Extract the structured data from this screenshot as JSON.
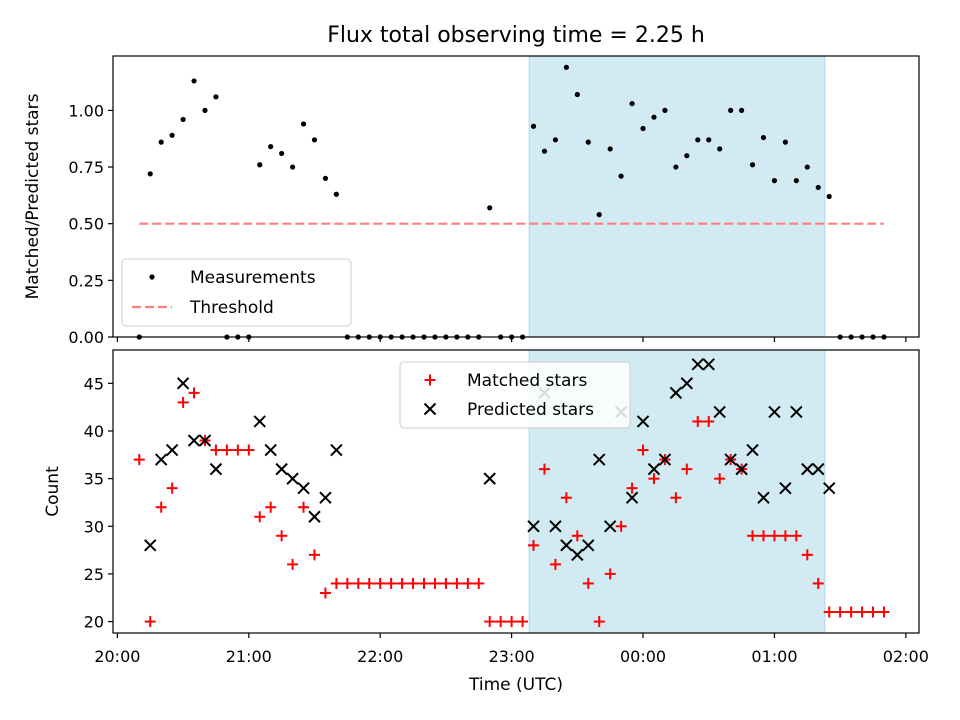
{
  "title": "Flux total observing time = 2.25 h",
  "colors": {
    "measurement": "#000000",
    "threshold": "#ff7f7f",
    "matched": "#ff0000",
    "predicted": "#000000",
    "window": "#add8e6"
  },
  "chart_data": [
    {
      "type": "scatter",
      "panel": "top",
      "title": "Flux total observing time = 2.25 h",
      "xlabel": "",
      "ylabel": "Matched/Predicted stars",
      "xlim": [
        "19:58",
        "02:06"
      ],
      "ylim": [
        0,
        1.24
      ],
      "yticks": [
        "0.00",
        "0.25",
        "0.50",
        "0.75",
        "1.00"
      ],
      "observing_window": [
        "23:08",
        "01:23"
      ],
      "legend_position": "lower-left",
      "series": [
        {
          "name": "Measurements",
          "marker": "dot",
          "points": [
            [
              "20:10",
              0.0
            ],
            [
              "20:15",
              0.72
            ],
            [
              "20:20",
              0.86
            ],
            [
              "20:25",
              0.89
            ],
            [
              "20:30",
              0.96
            ],
            [
              "20:35",
              1.13
            ],
            [
              "20:40",
              1.0
            ],
            [
              "20:45",
              1.06
            ],
            [
              "20:50",
              0.0
            ],
            [
              "20:55",
              0.0
            ],
            [
              "21:00",
              0.0
            ],
            [
              "21:05",
              0.76
            ],
            [
              "21:10",
              0.84
            ],
            [
              "21:15",
              0.81
            ],
            [
              "21:20",
              0.75
            ],
            [
              "21:25",
              0.94
            ],
            [
              "21:30",
              0.87
            ],
            [
              "21:35",
              0.7
            ],
            [
              "21:40",
              0.63
            ],
            [
              "21:45",
              0.0
            ],
            [
              "21:50",
              0.0
            ],
            [
              "21:55",
              0.0
            ],
            [
              "22:00",
              0.0
            ],
            [
              "22:05",
              0.0
            ],
            [
              "22:10",
              0.0
            ],
            [
              "22:15",
              0.0
            ],
            [
              "22:20",
              0.0
            ],
            [
              "22:25",
              0.0
            ],
            [
              "22:30",
              0.0
            ],
            [
              "22:35",
              0.0
            ],
            [
              "22:40",
              0.0
            ],
            [
              "22:45",
              0.0
            ],
            [
              "22:50",
              0.57
            ],
            [
              "22:55",
              0.0
            ],
            [
              "23:00",
              0.0
            ],
            [
              "23:05",
              0.0
            ],
            [
              "23:10",
              0.93
            ],
            [
              "23:15",
              0.82
            ],
            [
              "23:20",
              0.87
            ],
            [
              "23:25",
              1.19
            ],
            [
              "23:30",
              1.07
            ],
            [
              "23:35",
              0.86
            ],
            [
              "23:40",
              0.54
            ],
            [
              "23:45",
              0.83
            ],
            [
              "23:50",
              0.71
            ],
            [
              "23:55",
              1.03
            ],
            [
              "00:00",
              0.92
            ],
            [
              "00:05",
              0.97
            ],
            [
              "00:10",
              1.0
            ],
            [
              "00:15",
              0.75
            ],
            [
              "00:20",
              0.8
            ],
            [
              "00:25",
              0.87
            ],
            [
              "00:30",
              0.87
            ],
            [
              "00:35",
              0.83
            ],
            [
              "00:40",
              1.0
            ],
            [
              "00:45",
              1.0
            ],
            [
              "00:50",
              0.76
            ],
            [
              "00:55",
              0.88
            ],
            [
              "01:00",
              0.69
            ],
            [
              "01:05",
              0.86
            ],
            [
              "01:10",
              0.69
            ],
            [
              "01:15",
              0.75
            ],
            [
              "01:20",
              0.66
            ],
            [
              "01:25",
              0.62
            ],
            [
              "01:30",
              0.0
            ],
            [
              "01:35",
              0.0
            ],
            [
              "01:40",
              0.0
            ],
            [
              "01:45",
              0.0
            ],
            [
              "01:50",
              0.0
            ]
          ]
        },
        {
          "name": "Threshold",
          "marker": "dashed-line",
          "points": [
            [
              "20:10",
              0.5
            ],
            [
              "01:50",
              0.5
            ]
          ]
        }
      ]
    },
    {
      "type": "scatter",
      "panel": "bottom",
      "title": "",
      "xlabel": "Time (UTC)",
      "ylabel": "Count",
      "xlim": [
        "19:58",
        "02:06"
      ],
      "ylim": [
        18.8,
        48.5
      ],
      "xticks": [
        "20:00",
        "21:00",
        "22:00",
        "23:00",
        "00:00",
        "01:00",
        "02:00"
      ],
      "yticks": [
        "20",
        "25",
        "30",
        "35",
        "40",
        "45"
      ],
      "observing_window": [
        "23:08",
        "01:23"
      ],
      "legend_position": "upper-center",
      "series": [
        {
          "name": "Matched stars",
          "marker": "plus",
          "points": [
            [
              "20:10",
              37
            ],
            [
              "20:15",
              20
            ],
            [
              "20:20",
              32
            ],
            [
              "20:25",
              34
            ],
            [
              "20:30",
              43
            ],
            [
              "20:35",
              44
            ],
            [
              "20:40",
              39
            ],
            [
              "20:45",
              38
            ],
            [
              "20:50",
              38
            ],
            [
              "20:55",
              38
            ],
            [
              "21:00",
              38
            ],
            [
              "21:05",
              31
            ],
            [
              "21:10",
              32
            ],
            [
              "21:15",
              29
            ],
            [
              "21:20",
              26
            ],
            [
              "21:25",
              32
            ],
            [
              "21:30",
              27
            ],
            [
              "21:35",
              23
            ],
            [
              "21:40",
              24
            ],
            [
              "21:45",
              24
            ],
            [
              "21:50",
              24
            ],
            [
              "21:55",
              24
            ],
            [
              "22:00",
              24
            ],
            [
              "22:05",
              24
            ],
            [
              "22:10",
              24
            ],
            [
              "22:15",
              24
            ],
            [
              "22:20",
              24
            ],
            [
              "22:25",
              24
            ],
            [
              "22:30",
              24
            ],
            [
              "22:35",
              24
            ],
            [
              "22:40",
              24
            ],
            [
              "22:45",
              24
            ],
            [
              "22:50",
              20
            ],
            [
              "22:55",
              20
            ],
            [
              "23:00",
              20
            ],
            [
              "23:05",
              20
            ],
            [
              "23:10",
              28
            ],
            [
              "23:15",
              36
            ],
            [
              "23:20",
              26
            ],
            [
              "23:25",
              33
            ],
            [
              "23:30",
              29
            ],
            [
              "23:35",
              24
            ],
            [
              "23:40",
              20
            ],
            [
              "23:45",
              25
            ],
            [
              "23:50",
              30
            ],
            [
              "23:55",
              34
            ],
            [
              "00:00",
              38
            ],
            [
              "00:05",
              35
            ],
            [
              "00:10",
              37
            ],
            [
              "00:15",
              33
            ],
            [
              "00:20",
              36
            ],
            [
              "00:25",
              41
            ],
            [
              "00:30",
              41
            ],
            [
              "00:35",
              35
            ],
            [
              "00:40",
              37
            ],
            [
              "00:45",
              36
            ],
            [
              "00:50",
              29
            ],
            [
              "00:55",
              29
            ],
            [
              "01:00",
              29
            ],
            [
              "01:05",
              29
            ],
            [
              "01:10",
              29
            ],
            [
              "01:15",
              27
            ],
            [
              "01:20",
              24
            ],
            [
              "01:25",
              21
            ],
            [
              "01:30",
              21
            ],
            [
              "01:35",
              21
            ],
            [
              "01:40",
              21
            ],
            [
              "01:45",
              21
            ],
            [
              "01:50",
              21
            ]
          ]
        },
        {
          "name": "Predicted stars",
          "marker": "x",
          "points": [
            [
              "20:15",
              28
            ],
            [
              "20:20",
              37
            ],
            [
              "20:25",
              38
            ],
            [
              "20:30",
              45
            ],
            [
              "20:35",
              39
            ],
            [
              "20:40",
              39
            ],
            [
              "20:45",
              36
            ],
            [
              "21:05",
              41
            ],
            [
              "21:10",
              38
            ],
            [
              "21:15",
              36
            ],
            [
              "21:20",
              35
            ],
            [
              "21:25",
              34
            ],
            [
              "21:30",
              31
            ],
            [
              "21:35",
              33
            ],
            [
              "21:40",
              38
            ],
            [
              "22:50",
              35
            ],
            [
              "23:10",
              30
            ],
            [
              "23:15",
              44
            ],
            [
              "23:20",
              30
            ],
            [
              "23:25",
              28
            ],
            [
              "23:30",
              27
            ],
            [
              "23:35",
              28
            ],
            [
              "23:40",
              37
            ],
            [
              "23:45",
              30
            ],
            [
              "23:50",
              42
            ],
            [
              "23:55",
              33
            ],
            [
              "00:00",
              41
            ],
            [
              "00:05",
              36
            ],
            [
              "00:10",
              37
            ],
            [
              "00:15",
              44
            ],
            [
              "00:20",
              45
            ],
            [
              "00:25",
              47
            ],
            [
              "00:30",
              47
            ],
            [
              "00:35",
              42
            ],
            [
              "00:40",
              37
            ],
            [
              "00:45",
              36
            ],
            [
              "00:50",
              38
            ],
            [
              "00:55",
              33
            ],
            [
              "01:00",
              42
            ],
            [
              "01:05",
              34
            ],
            [
              "01:10",
              42
            ],
            [
              "01:15",
              36
            ],
            [
              "01:20",
              36
            ],
            [
              "01:25",
              34
            ]
          ]
        }
      ]
    }
  ]
}
